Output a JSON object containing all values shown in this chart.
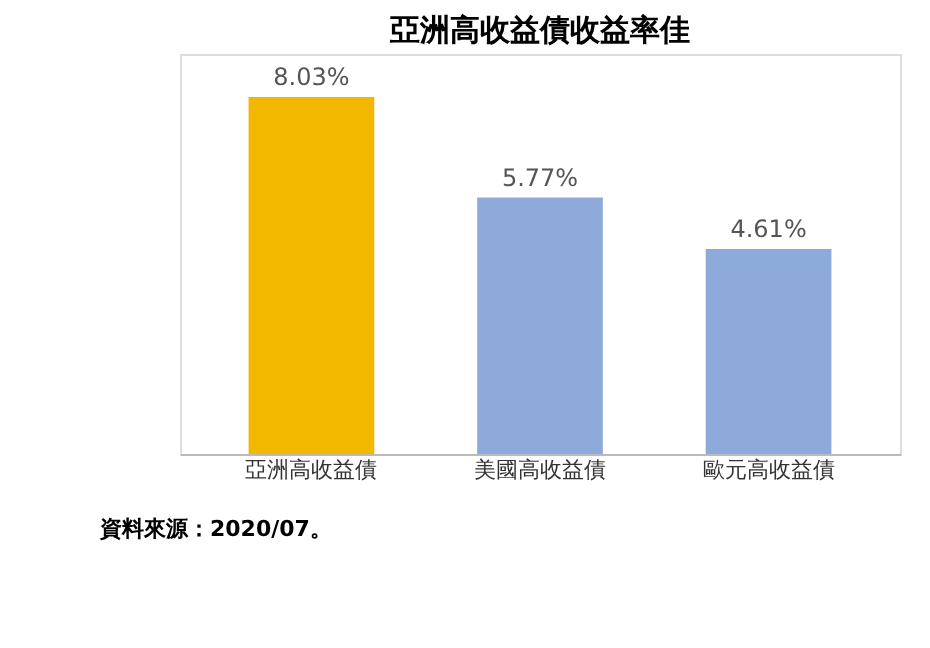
{
  "chart_data": {
    "type": "bar",
    "title": "亞洲高收益債收益率佳",
    "categories": [
      "亞洲高收益債",
      "美國高收益債",
      "歐元高收益債"
    ],
    "values": [
      8.03,
      5.77,
      4.61
    ],
    "colors": [
      "#f2b800",
      "#8eaadb",
      "#8eaadb"
    ],
    "value_labels": [
      "8.03%",
      "5.77%",
      "4.61%"
    ],
    "annotations": [
      "資料來源：2020/07。"
    ]
  }
}
